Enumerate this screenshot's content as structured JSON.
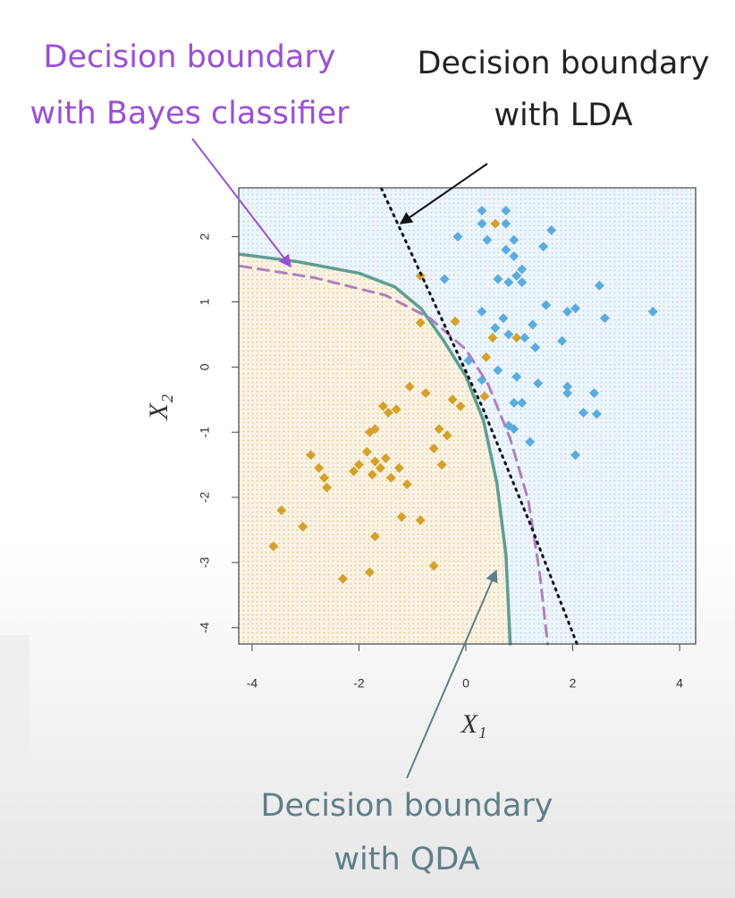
{
  "chart_data": {
    "type": "scatter",
    "xlabel": "X₁",
    "ylabel": "X₂",
    "xlim": [
      -4.25,
      4.3
    ],
    "ylim": [
      -4.25,
      2.75
    ],
    "xticks": [
      -4,
      -2,
      0,
      2,
      4
    ],
    "yticks": [
      -4,
      -3,
      -2,
      -1,
      0,
      1,
      2
    ],
    "series": [
      {
        "color": "#d6a12a",
        "x": [
          -0.2,
          0.55,
          -0.85,
          -0.85,
          0.5,
          0.95,
          0.38,
          0.35,
          -1.05,
          -0.75,
          -0.25,
          -0.1,
          -1.3,
          -1.45,
          -1.55,
          -1.7,
          -1.8,
          -0.5,
          -0.6,
          -0.35,
          -0.45,
          -2.0,
          -2.1,
          -1.85,
          -1.7,
          -1.6,
          -1.4,
          -1.25,
          -1.1,
          -1.75,
          -2.9,
          -2.75,
          -2.65,
          -2.6,
          -1.5,
          -1.2,
          -0.85,
          -1.7,
          -3.45,
          -3.05,
          -3.6,
          -0.6,
          -1.8,
          -2.3
        ],
        "values": [
          0.7,
          2.2,
          1.4,
          0.68,
          0.45,
          0.45,
          0.15,
          -0.45,
          -0.3,
          -0.4,
          -0.5,
          -0.6,
          -0.65,
          -0.7,
          -0.6,
          -0.95,
          -1.0,
          -0.95,
          -1.25,
          -1.05,
          -1.5,
          -1.5,
          -1.6,
          -1.3,
          -1.45,
          -1.55,
          -1.7,
          -1.55,
          -1.8,
          -1.65,
          -1.35,
          -1.55,
          -1.7,
          -1.85,
          -1.4,
          -2.3,
          -2.35,
          -2.6,
          -2.2,
          -2.45,
          -2.75,
          -3.05,
          -3.15,
          -3.25
        ]
      },
      {
        "color": "#5aacde",
        "x": [
          0.3,
          0.75,
          0.3,
          0.75,
          1.6,
          -0.15,
          0.4,
          0.9,
          1.45,
          0.75,
          0.9,
          1.05,
          0.6,
          0.95,
          1.05,
          0.8,
          -0.4,
          2.5,
          1.5,
          0.3,
          1.9,
          2.05,
          3.5,
          0.7,
          2.6,
          0.55,
          1.25,
          0.8,
          1.1,
          1.3,
          1.8,
          0.05,
          0.6,
          0.95,
          1.35,
          1.9,
          1.9,
          2.4,
          0.3,
          0.9,
          1.05,
          2.2,
          2.45,
          0.8,
          0.9,
          1.2,
          2.05
        ],
        "values": [
          2.4,
          2.4,
          2.2,
          2.2,
          2.1,
          2.0,
          1.95,
          1.95,
          1.85,
          1.8,
          1.7,
          1.5,
          1.35,
          1.4,
          1.3,
          1.3,
          1.35,
          1.25,
          0.95,
          0.85,
          0.85,
          0.9,
          0.85,
          0.75,
          0.75,
          0.6,
          0.65,
          0.5,
          0.45,
          0.3,
          0.4,
          0.1,
          -0.05,
          -0.15,
          -0.25,
          -0.3,
          -0.4,
          -0.4,
          -0.2,
          -0.55,
          -0.55,
          -0.7,
          -0.72,
          -0.9,
          -0.95,
          -1.15,
          -1.35
        ]
      }
    ],
    "boundaries": [
      {
        "color": "#5e9e92",
        "style": "solid",
        "x": [
          -4.22,
          -3.17,
          -2,
          -1.33,
          -0.83,
          -0.42,
          0,
          0.33,
          0.58,
          0.75,
          0.83
        ],
        "values": [
          1.73,
          1.62,
          1.44,
          1.23,
          0.89,
          0.41,
          -0.14,
          -0.82,
          -1.78,
          -2.88,
          -4.25
        ]
      },
      {
        "color": "#b07fbf",
        "style": "dashed",
        "x": [
          -4.22,
          -2.83,
          -1.5,
          -0.67,
          0,
          0.42,
          0.83,
          1.17,
          1.38,
          1.53
        ],
        "values": [
          1.55,
          1.37,
          1.1,
          0.75,
          0.27,
          -0.27,
          -1.1,
          -2.05,
          -3.15,
          -4.25
        ]
      },
      {
        "color": "#111111",
        "style": "dotted",
        "x": [
          -1.58,
          -0.6,
          0.3,
          1.2,
          2.08
        ],
        "values": [
          2.74,
          1.0,
          -0.6,
          -2.4,
          -4.25
        ]
      }
    ],
    "annotations": [
      {
        "lines": [
          "Decision boundary",
          "with Bayes classifier"
        ],
        "color": "#9b4fd6"
      },
      {
        "lines": [
          "Decision boundary",
          "with LDA"
        ],
        "color": "#222222"
      },
      {
        "lines": [
          "Decision boundary",
          "with QDA"
        ],
        "color": "#5d7f88"
      }
    ]
  }
}
